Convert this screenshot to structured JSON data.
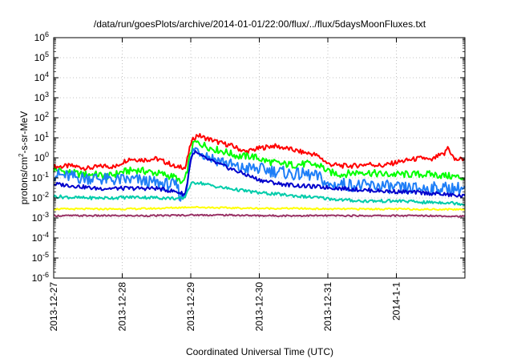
{
  "chart_data": {
    "type": "line",
    "title": "/data/run/goesPlots/archive/2014-01-01/22:00/flux/../flux/5daysMoonFluxes.txt",
    "xlabel": "Coordinated Universal Time (UTC)",
    "ylabel": {
      "prefix": "protons/cm",
      "sup": "2",
      "suffix": "-s-sr-MeV"
    },
    "y_scale": "log",
    "ylim_exponent": [
      -6,
      6
    ],
    "y_ticks": [
      {
        "base": "10",
        "exp": "-6"
      },
      {
        "base": "10",
        "exp": "-5"
      },
      {
        "base": "10",
        "exp": "-4"
      },
      {
        "base": "10",
        "exp": "-3"
      },
      {
        "base": "10",
        "exp": "-2"
      },
      {
        "base": "10",
        "exp": "-1"
      },
      {
        "base": "10",
        "exp": "0"
      },
      {
        "base": "10",
        "exp": "1"
      },
      {
        "base": "10",
        "exp": "2"
      },
      {
        "base": "10",
        "exp": "3"
      },
      {
        "base": "10",
        "exp": "4"
      },
      {
        "base": "10",
        "exp": "5"
      },
      {
        "base": "10",
        "exp": "6"
      }
    ],
    "x_ticks": [
      "2013-12-27",
      "2013-12-28",
      "2013-12-29",
      "2013-12-30",
      "2013-12-31",
      "2014-1-1"
    ],
    "x_range_days": [
      0,
      6
    ],
    "grid": "dotted",
    "series": [
      {
        "color": "#ff0000",
        "x": [
          0,
          0.25,
          0.5,
          0.75,
          0.9,
          1.0,
          1.1,
          1.3,
          1.5,
          1.7,
          1.8,
          1.85,
          1.92,
          2.0,
          2.05,
          2.1,
          2.2,
          2.3,
          2.4,
          2.6,
          2.8,
          3.0,
          3.2,
          3.4,
          3.6,
          3.8,
          3.9,
          4.0,
          4.2,
          4.4,
          4.6,
          4.8,
          5.0,
          5.2,
          5.4,
          5.5,
          5.6,
          5.7,
          5.75,
          5.85,
          6.0
        ],
        "y": [
          0.35,
          0.4,
          0.3,
          0.4,
          0.35,
          0.6,
          0.9,
          0.8,
          0.9,
          0.5,
          0.3,
          0.4,
          0.3,
          5,
          10,
          14,
          10,
          8,
          6,
          4,
          2,
          3,
          4,
          3,
          2,
          1.5,
          1,
          0.5,
          0.4,
          0.4,
          0.5,
          0.4,
          0.6,
          0.8,
          1.0,
          0.7,
          1.2,
          1.5,
          3.5,
          0.8,
          0.9
        ]
      },
      {
        "color": "#00ff00",
        "x": [
          0,
          0.2,
          0.4,
          0.6,
          0.8,
          1.0,
          1.2,
          1.4,
          1.6,
          1.8,
          1.85,
          1.92,
          2.0,
          2.05,
          2.15,
          2.3,
          2.5,
          2.7,
          2.9,
          3.1,
          3.3,
          3.5,
          3.7,
          3.9,
          4.0,
          4.2,
          4.5,
          4.8,
          5.0,
          5.2,
          5.5,
          5.8,
          6.0
        ],
        "y": [
          0.25,
          0.2,
          0.15,
          0.15,
          0.12,
          0.2,
          0.25,
          0.2,
          0.15,
          0.1,
          0.05,
          0.08,
          2,
          6,
          5,
          3,
          2,
          1.2,
          1.2,
          0.7,
          0.5,
          0.45,
          0.5,
          0.4,
          0.2,
          0.15,
          0.2,
          0.15,
          0.15,
          0.15,
          0.15,
          0.12,
          0.1
        ]
      },
      {
        "color": "#1e7ef7",
        "x": [
          0,
          0.2,
          0.4,
          0.6,
          0.8,
          1.0,
          1.2,
          1.4,
          1.6,
          1.8,
          1.85,
          1.92,
          2.0,
          2.05,
          2.15,
          2.3,
          2.5,
          2.7,
          2.9,
          3.1,
          3.3,
          3.5,
          3.7,
          3.9,
          4.0,
          4.2,
          4.5,
          4.8,
          5.0,
          5.2,
          5.5,
          5.8,
          6.0
        ],
        "y": [
          0.15,
          0.12,
          0.1,
          0.1,
          0.08,
          0.08,
          0.08,
          0.06,
          0.05,
          0.04,
          0.01,
          0.02,
          0.8,
          3,
          2,
          1,
          0.6,
          0.3,
          0.3,
          0.25,
          0.2,
          0.15,
          0.15,
          0.1,
          0.04,
          0.05,
          0.04,
          0.04,
          0.03,
          0.03,
          0.03,
          0.03,
          0.03
        ]
      },
      {
        "color": "#0000cc",
        "x": [
          0,
          0.3,
          0.6,
          0.9,
          1.2,
          1.5,
          1.8,
          1.92,
          2.0,
          2.05,
          2.2,
          2.4,
          2.7,
          3.0,
          3.3,
          3.6,
          3.9,
          4.2,
          4.5,
          4.8,
          5.1,
          5.4,
          5.7,
          6.0
        ],
        "y": [
          0.05,
          0.04,
          0.03,
          0.03,
          0.03,
          0.03,
          0.02,
          0.015,
          0.8,
          2,
          1,
          0.5,
          0.2,
          0.08,
          0.05,
          0.04,
          0.035,
          0.03,
          0.025,
          0.022,
          0.02,
          0.018,
          0.015,
          0.012
        ]
      },
      {
        "color": "#00ccaa",
        "x": [
          0,
          0.4,
          0.8,
          1.2,
          1.6,
          1.9,
          2.0,
          2.1,
          2.4,
          2.7,
          3.0,
          3.3,
          3.6,
          3.9,
          4.2,
          4.5,
          4.8,
          5.1,
          5.4,
          5.7,
          6.0
        ],
        "y": [
          0.012,
          0.01,
          0.01,
          0.011,
          0.01,
          0.009,
          0.05,
          0.06,
          0.035,
          0.025,
          0.018,
          0.015,
          0.012,
          0.01,
          0.008,
          0.007,
          0.007,
          0.007,
          0.006,
          0.006,
          0.005
        ]
      },
      {
        "color": "#ffff00",
        "x": [
          0,
          0.5,
          1.0,
          1.5,
          2.0,
          2.5,
          3.0,
          3.5,
          4.0,
          4.5,
          5.0,
          5.5,
          6.0
        ],
        "y": [
          0.0028,
          0.0028,
          0.0028,
          0.003,
          0.0035,
          0.0032,
          0.003,
          0.003,
          0.0028,
          0.0028,
          0.0028,
          0.0027,
          0.0027
        ]
      },
      {
        "color": "#993366",
        "x": [
          0,
          0.5,
          1.0,
          1.5,
          2.0,
          2.5,
          3.0,
          3.5,
          4.0,
          4.5,
          5.0,
          5.5,
          6.0
        ],
        "y": [
          0.0013,
          0.0013,
          0.0013,
          0.0013,
          0.0014,
          0.0014,
          0.0013,
          0.0013,
          0.0013,
          0.0013,
          0.0013,
          0.0013,
          0.0012
        ]
      }
    ]
  }
}
